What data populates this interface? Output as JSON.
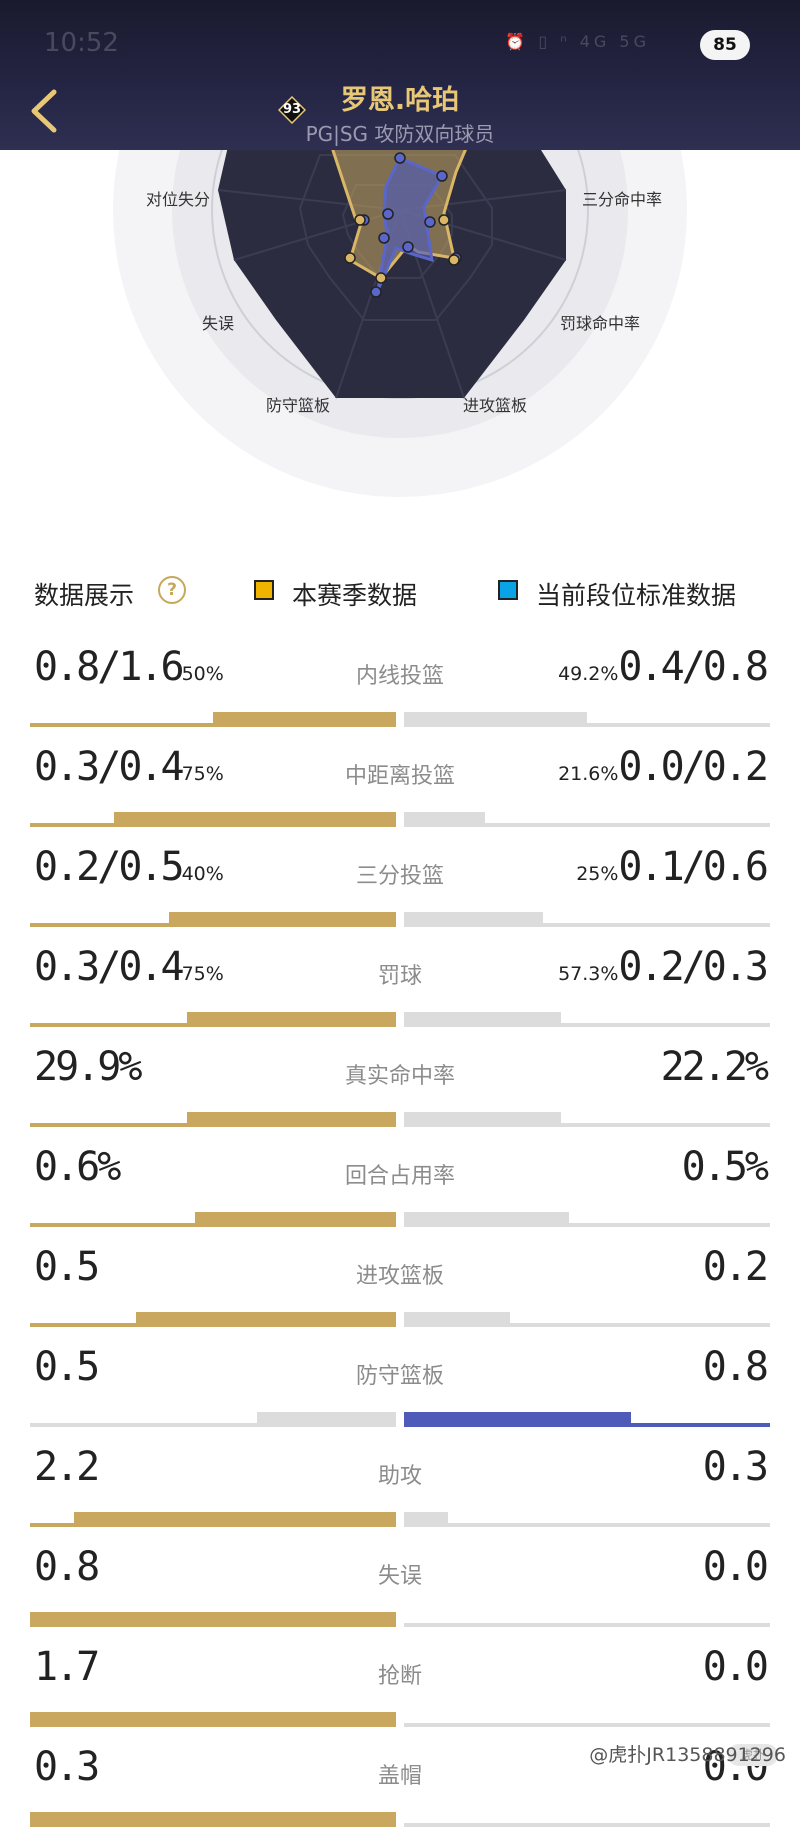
{
  "status_bar": {
    "time": "10:52",
    "icons": "⏰ ▯ ⁿ 4G 5G",
    "battery": "85"
  },
  "header": {
    "player_name": "罗恩.哈珀",
    "position": "PG|SG 攻防双向球员",
    "rating_badge": "93",
    "back_icon": "chevron-left-icon"
  },
  "radar": {
    "axes": [
      "三分命中率",
      "罚球命中率",
      "进攻篮板",
      "防守篮板",
      "失误",
      "对位失分"
    ],
    "season_color": "#c9a75e",
    "standard_color": "#4f5bb8"
  },
  "legend": {
    "title": "数据展示",
    "help_icon": "question-icon",
    "season_label": "本赛季数据",
    "season_color": "#f0b400",
    "standard_label": "当前段位标准数据",
    "standard_color": "#0aa3e6"
  },
  "stats": [
    {
      "label": "内线投篮",
      "left": "0.8/1.6",
      "left_pct": "50%",
      "right": "0.4/0.8",
      "right_pct": "49.2%",
      "left_fill": 0.5,
      "right_fill": 0.5,
      "left_win": true
    },
    {
      "label": "中距离投篮",
      "left": "0.3/0.4",
      "left_pct": "75%",
      "right": "0.0/0.2",
      "right_pct": "21.6%",
      "left_fill": 0.77,
      "right_fill": 0.22,
      "left_win": true
    },
    {
      "label": "三分投篮",
      "left": "0.2/0.5",
      "left_pct": "40%",
      "right": "0.1/0.6",
      "right_pct": "25%",
      "left_fill": 0.62,
      "right_fill": 0.38,
      "left_win": true
    },
    {
      "label": "罚球",
      "left": "0.3/0.4",
      "left_pct": "75%",
      "right": "0.2/0.3",
      "right_pct": "57.3%",
      "left_fill": 0.57,
      "right_fill": 0.43,
      "left_win": true
    },
    {
      "label": "真实命中率",
      "left": "29.9%",
      "left_pct": "",
      "right": "22.2%",
      "right_pct": "",
      "left_fill": 0.57,
      "right_fill": 0.43,
      "left_win": true
    },
    {
      "label": "回合占用率",
      "left": "0.6%",
      "left_pct": "",
      "right": "0.5%",
      "right_pct": "",
      "left_fill": 0.55,
      "right_fill": 0.45,
      "left_win": true
    },
    {
      "label": "进攻篮板",
      "left": "0.5",
      "left_pct": "",
      "right": "0.2",
      "right_pct": "",
      "left_fill": 0.71,
      "right_fill": 0.29,
      "left_win": true
    },
    {
      "label": "防守篮板",
      "left": "0.5",
      "left_pct": "",
      "right": "0.8",
      "right_pct": "",
      "left_fill": 0.38,
      "right_fill": 0.62,
      "left_win": false
    },
    {
      "label": "助攻",
      "left": "2.2",
      "left_pct": "",
      "right": "0.3",
      "right_pct": "",
      "left_fill": 0.88,
      "right_fill": 0.12,
      "left_win": true
    },
    {
      "label": "失误",
      "left": "0.8",
      "left_pct": "",
      "right": "0.0",
      "right_pct": "",
      "left_fill": 1.0,
      "right_fill": 0.0,
      "left_win": true
    },
    {
      "label": "抢断",
      "left": "1.7",
      "left_pct": "",
      "right": "0.0",
      "right_pct": "",
      "left_fill": 1.0,
      "right_fill": 0.0,
      "left_win": true
    },
    {
      "label": "盖帽",
      "left": "0.3",
      "left_pct": "",
      "right": "0.0",
      "right_pct": "",
      "left_fill": 1.0,
      "right_fill": 0.0,
      "left_win": true
    }
  ],
  "watermark": {
    "text": "@虎扑JR1358891296",
    "logo": "虎扑"
  }
}
